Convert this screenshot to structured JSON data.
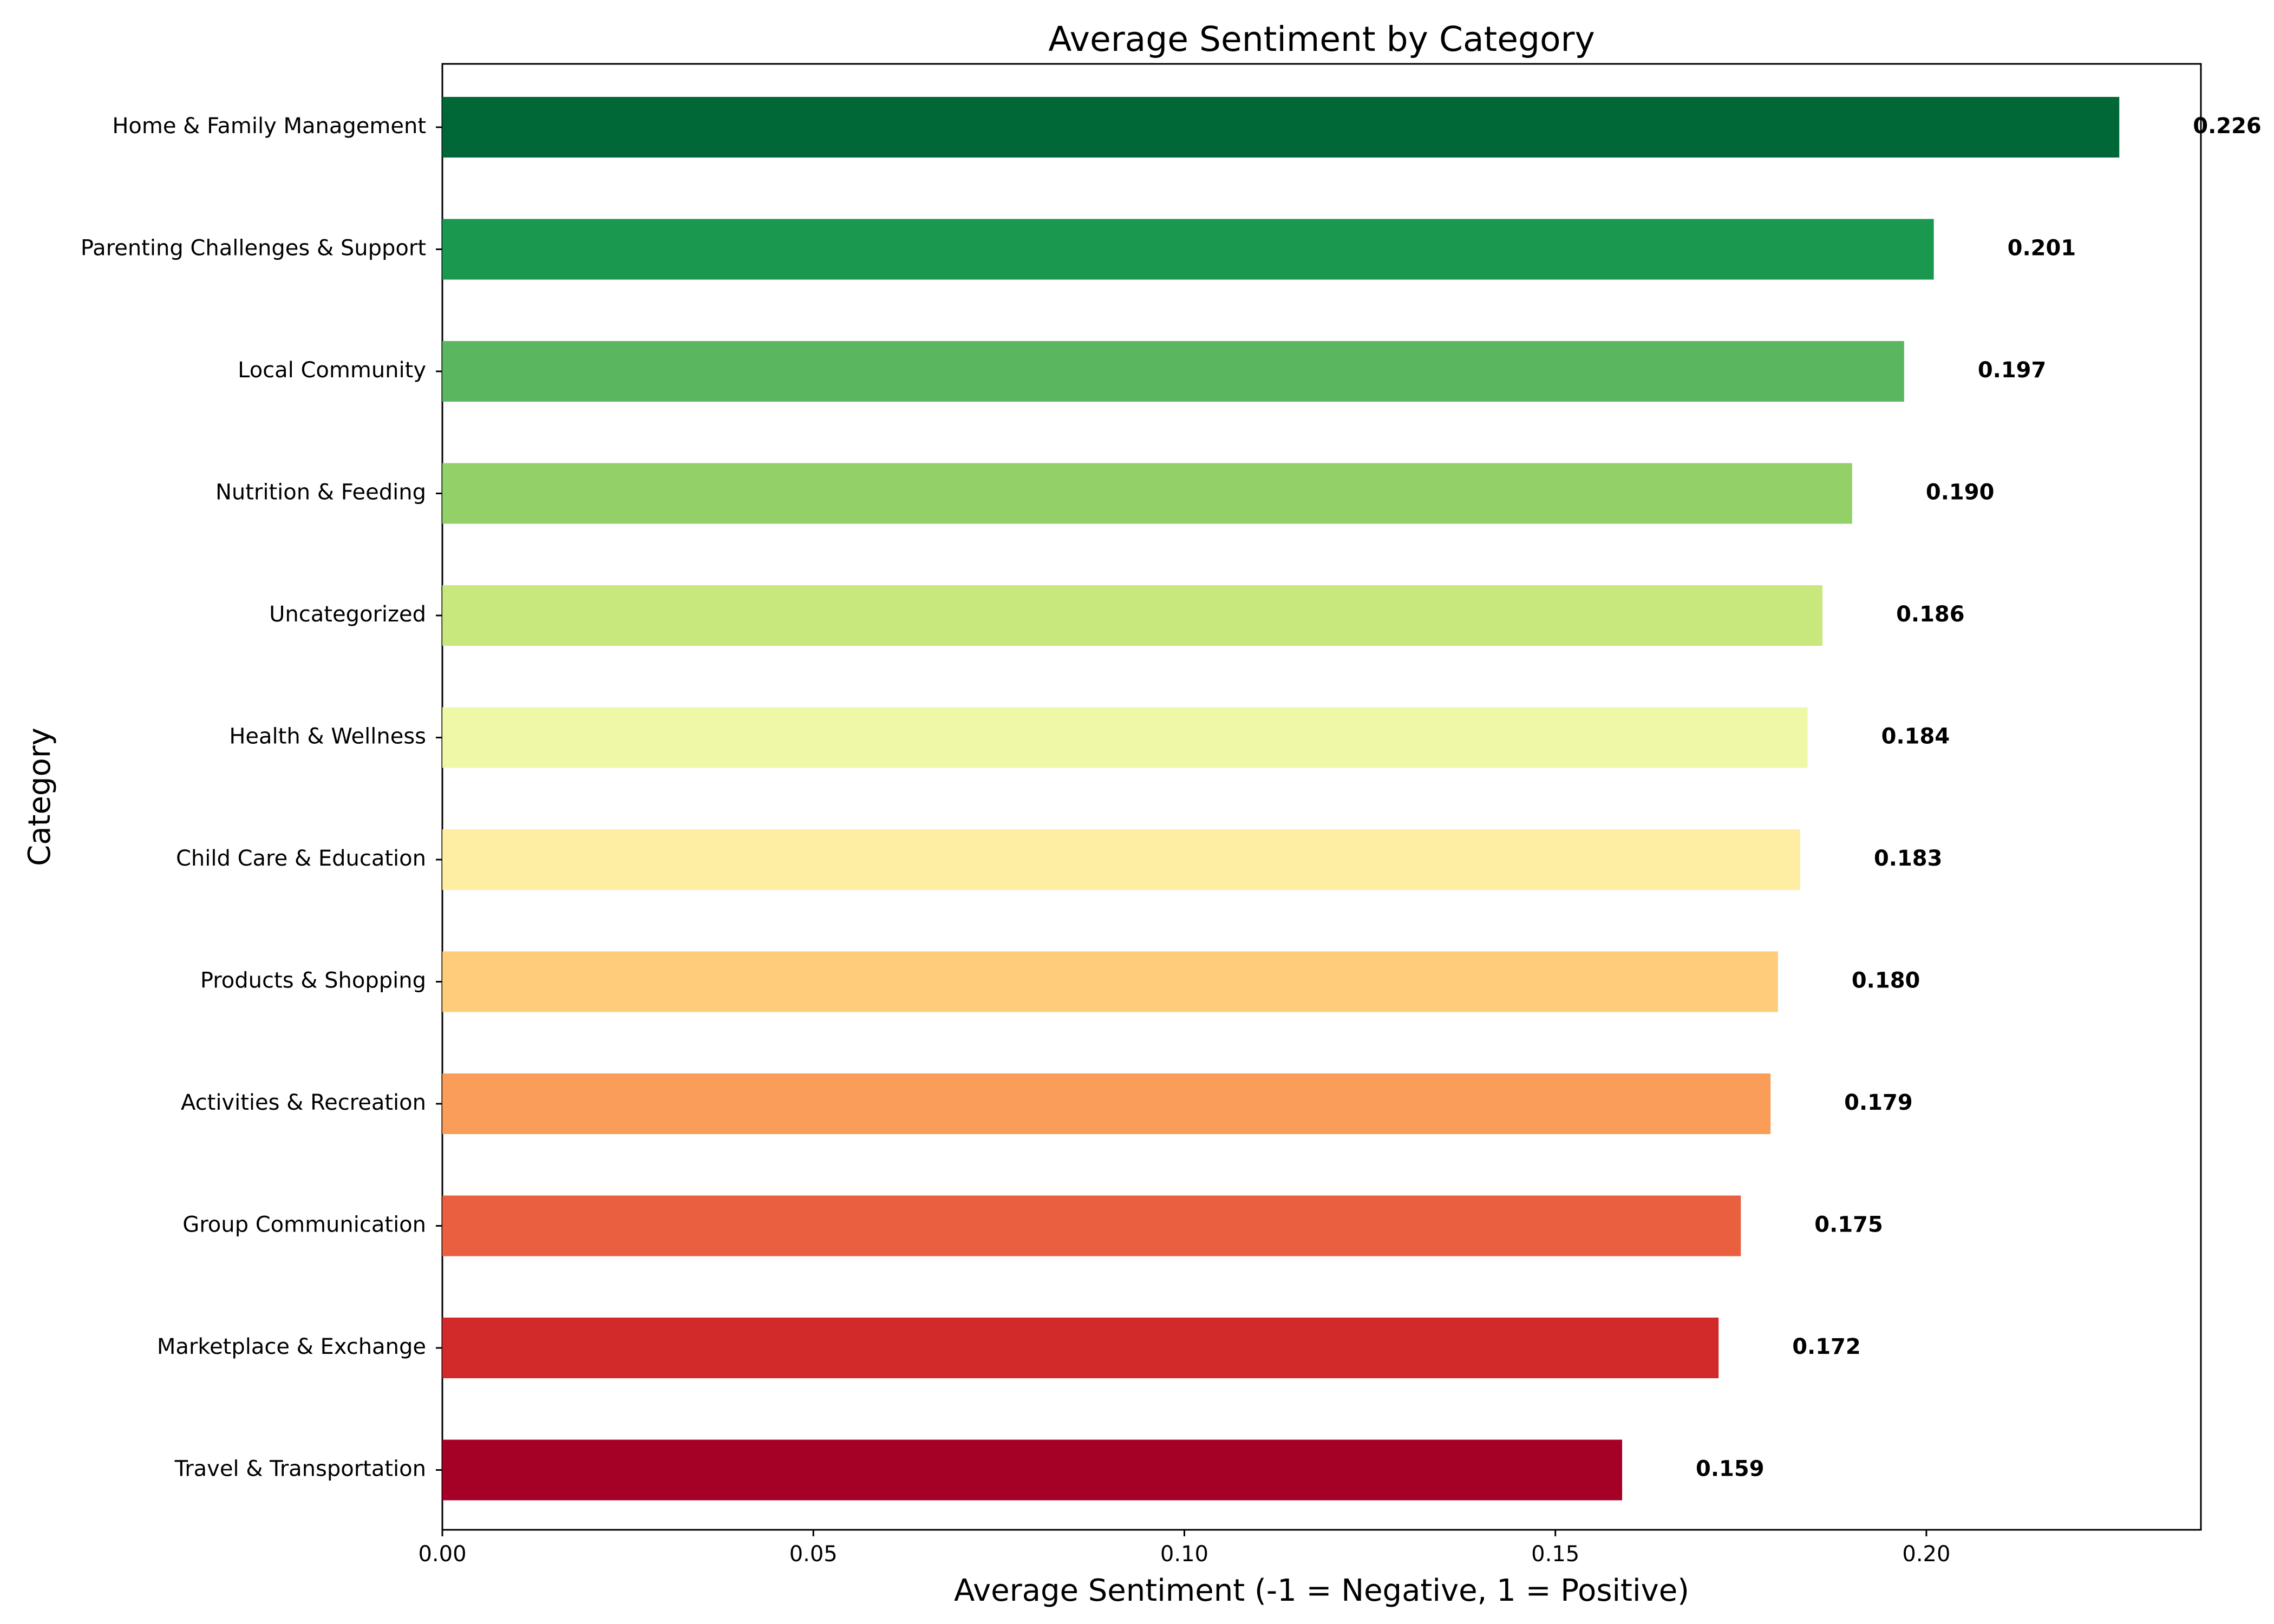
{
  "chart_data": {
    "type": "bar",
    "orientation": "horizontal",
    "title": "Average Sentiment by Category",
    "xlabel": "Average Sentiment (-1 = Negative, 1 = Positive)",
    "ylabel": "Category",
    "xlim": [
      0,
      0.237
    ],
    "xticks": [
      "0.00",
      "0.05",
      "0.10",
      "0.15",
      "0.20"
    ],
    "xtick_values": [
      0,
      0.05,
      0.1,
      0.15,
      0.2
    ],
    "grid": false,
    "categories": [
      "Home & Family Management",
      "Parenting Challenges & Support",
      "Local Community",
      "Nutrition & Feeding",
      "Uncategorized",
      "Health & Wellness",
      "Child Care & Education",
      "Products & Shopping",
      "Activities & Recreation",
      "Group Communication",
      "Marketplace & Exchange",
      "Travel & Transportation"
    ],
    "values": [
      0.226,
      0.201,
      0.197,
      0.19,
      0.186,
      0.184,
      0.183,
      0.18,
      0.179,
      0.175,
      0.172,
      0.159
    ],
    "value_labels": [
      "0.226",
      "0.201",
      "0.197",
      "0.190",
      "0.186",
      "0.184",
      "0.183",
      "0.180",
      "0.179",
      "0.175",
      "0.172",
      "0.159"
    ],
    "colors": [
      "#006837",
      "#1a9850",
      "#5ab760",
      "#93d168",
      "#c8e87d",
      "#eff8a6",
      "#feeea2",
      "#fecc7b",
      "#f99d59",
      "#ea5f3f",
      "#d2292b",
      "#a50026"
    ]
  }
}
